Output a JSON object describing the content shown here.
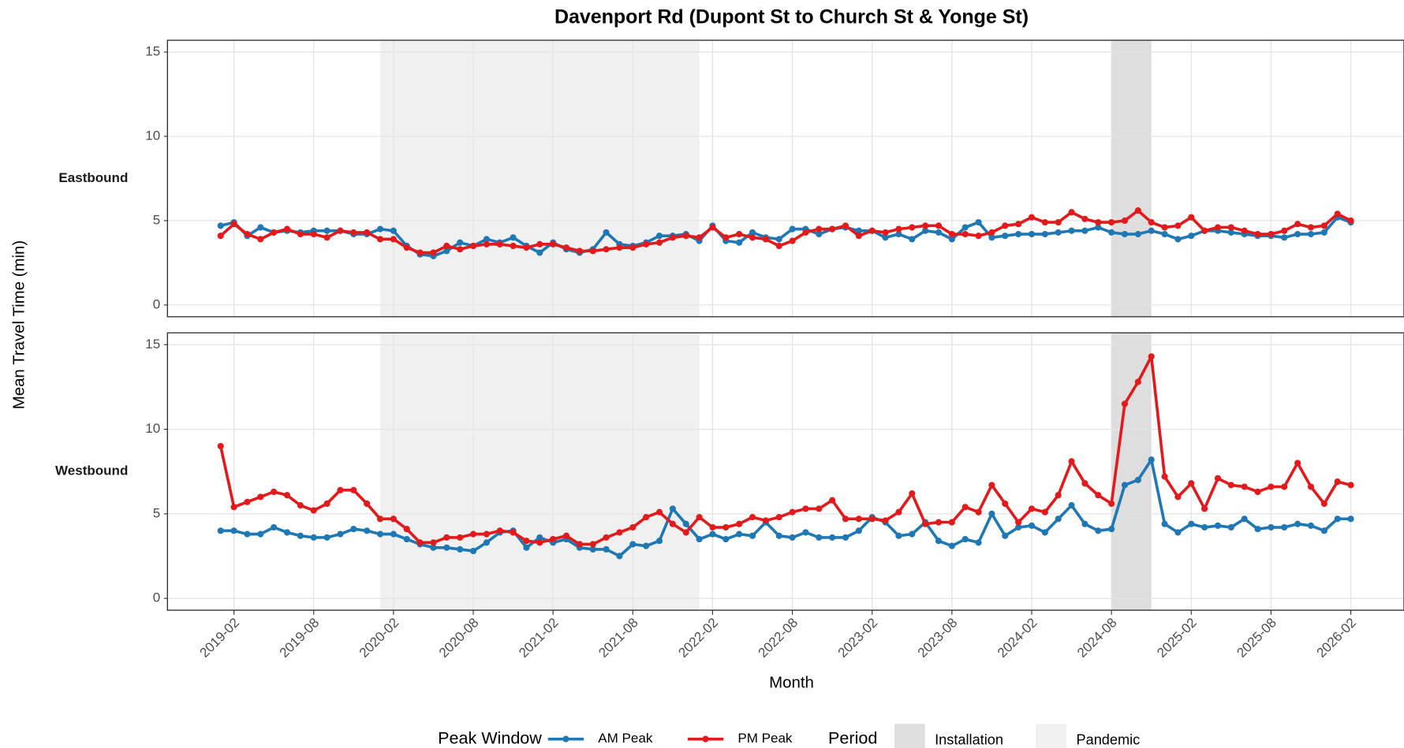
{
  "chart_data": {
    "type": "line",
    "title": "Davenport Rd (Dupont St to Church St & Yonge St)",
    "x_label": "Month",
    "y_label": "Mean Travel Time (min)",
    "x": [
      "2019-01",
      "2019-02",
      "2019-03",
      "2019-04",
      "2019-05",
      "2019-06",
      "2019-07",
      "2019-08",
      "2019-09",
      "2019-10",
      "2019-11",
      "2019-12",
      "2020-01",
      "2020-02",
      "2020-03",
      "2020-04",
      "2020-05",
      "2020-06",
      "2020-07",
      "2020-08",
      "2020-09",
      "2020-10",
      "2020-11",
      "2020-12",
      "2021-01",
      "2021-02",
      "2021-03",
      "2021-04",
      "2021-05",
      "2021-06",
      "2021-07",
      "2021-08",
      "2021-09",
      "2021-10",
      "2021-11",
      "2021-12",
      "2022-01",
      "2022-02",
      "2022-03",
      "2022-04",
      "2022-05",
      "2022-06",
      "2022-07",
      "2022-08",
      "2022-09",
      "2022-10",
      "2022-11",
      "2022-12",
      "2023-01",
      "2023-02",
      "2023-03",
      "2023-04",
      "2023-05",
      "2023-06",
      "2023-07",
      "2023-08",
      "2023-09",
      "2023-10",
      "2023-11",
      "2023-12",
      "2024-01",
      "2024-02",
      "2024-03",
      "2024-04",
      "2024-05",
      "2024-06",
      "2024-07",
      "2024-08",
      "2024-09",
      "2024-10",
      "2024-11",
      "2024-12",
      "2025-01",
      "2025-02",
      "2025-03",
      "2025-04",
      "2025-05",
      "2025-06",
      "2025-07",
      "2025-08",
      "2025-09",
      "2025-10",
      "2025-11",
      "2025-12",
      "2026-01",
      "2026-02"
    ],
    "xlim": [
      "2018-09",
      "2026-06"
    ],
    "xticks": [
      "2019-02",
      "2019-08",
      "2020-02",
      "2020-08",
      "2021-02",
      "2021-08",
      "2022-02",
      "2022-08",
      "2023-02",
      "2023-08",
      "2024-02",
      "2024-08",
      "2025-02",
      "2025-08",
      "2026-02"
    ],
    "ylim": [
      -0.7,
      15.7
    ],
    "yticks": [
      0,
      5,
      10,
      15
    ],
    "grid": true,
    "legend_title": "Peak Window",
    "period_legend_title": "Period",
    "periods": [
      {
        "name": "Installation",
        "start": "2024-08",
        "end": "2024-11",
        "color": "#dedede"
      },
      {
        "name": "Pandemic",
        "start": "2020-01",
        "end": "2022-01",
        "color": "#f0f0f0"
      }
    ],
    "panels": [
      {
        "label": "Eastbound",
        "series": [
          {
            "name": "AM Peak",
            "color": "#1f78b4",
            "values": [
              4.7,
              4.9,
              4.1,
              4.6,
              4.3,
              4.4,
              4.3,
              4.4,
              4.4,
              4.4,
              4.2,
              4.2,
              4.5,
              4.4,
              3.5,
              3.0,
              2.9,
              3.2,
              3.7,
              3.5,
              3.9,
              3.7,
              4.0,
              3.5,
              3.1,
              3.7,
              3.3,
              3.1,
              3.3,
              4.3,
              3.6,
              3.5,
              3.7,
              4.1,
              4.1,
              4.2,
              3.8,
              4.7,
              3.8,
              3.7,
              4.3,
              4.0,
              3.9,
              4.5,
              4.5,
              4.2,
              4.5,
              4.6,
              4.4,
              4.4,
              4.0,
              4.2,
              3.9,
              4.4,
              4.3,
              3.9,
              4.6,
              4.9,
              4.0,
              4.1,
              4.2,
              4.2,
              4.2,
              4.3,
              4.4,
              4.4,
              4.6,
              4.3,
              4.2,
              4.2,
              4.4,
              4.2,
              3.9,
              4.1,
              4.4,
              4.4,
              4.3,
              4.2,
              4.1,
              4.1,
              4.0,
              4.2,
              4.2,
              4.3,
              5.2,
              4.9
            ]
          },
          {
            "name": "PM Peak",
            "color": "#e31a1c",
            "values": [
              4.1,
              4.8,
              4.2,
              3.9,
              4.3,
              4.5,
              4.2,
              4.2,
              4.0,
              4.4,
              4.3,
              4.3,
              3.9,
              3.9,
              3.4,
              3.1,
              3.1,
              3.5,
              3.3,
              3.5,
              3.6,
              3.6,
              3.5,
              3.4,
              3.6,
              3.6,
              3.4,
              3.2,
              3.2,
              3.3,
              3.4,
              3.4,
              3.6,
              3.7,
              4.0,
              4.1,
              4.0,
              4.6,
              4.0,
              4.2,
              4.0,
              3.9,
              3.5,
              3.8,
              4.3,
              4.5,
              4.5,
              4.7,
              4.1,
              4.4,
              4.3,
              4.5,
              4.6,
              4.7,
              4.7,
              4.2,
              4.2,
              4.1,
              4.3,
              4.7,
              4.8,
              5.2,
              4.9,
              4.9,
              5.5,
              5.1,
              4.9,
              4.9,
              5.0,
              5.6,
              4.9,
              4.6,
              4.7,
              5.2,
              4.4,
              4.6,
              4.6,
              4.4,
              4.2,
              4.2,
              4.4,
              4.8,
              4.6,
              4.7,
              5.4,
              5.0
            ]
          }
        ]
      },
      {
        "label": "Westbound",
        "series": [
          {
            "name": "AM Peak",
            "color": "#1f78b4",
            "values": [
              4.0,
              4.0,
              3.8,
              3.8,
              4.2,
              3.9,
              3.7,
              3.6,
              3.6,
              3.8,
              4.1,
              4.0,
              3.8,
              3.8,
              3.5,
              3.2,
              3.0,
              3.0,
              2.9,
              2.8,
              3.3,
              3.9,
              4.0,
              3.0,
              3.6,
              3.3,
              3.5,
              3.0,
              2.9,
              2.9,
              2.5,
              3.2,
              3.1,
              3.4,
              5.3,
              4.4,
              3.5,
              3.8,
              3.5,
              3.8,
              3.7,
              4.5,
              3.7,
              3.6,
              3.9,
              3.6,
              3.6,
              3.6,
              4.0,
              4.8,
              4.5,
              3.7,
              3.8,
              4.5,
              3.4,
              3.1,
              3.5,
              3.3,
              5.0,
              3.7,
              4.2,
              4.3,
              3.9,
              4.7,
              5.5,
              4.4,
              4.0,
              4.1,
              6.7,
              7.0,
              8.2,
              4.4,
              3.9,
              4.4,
              4.2,
              4.3,
              4.2,
              4.7,
              4.1,
              4.2,
              4.2,
              4.4,
              4.3,
              4.0,
              4.7,
              4.7
            ]
          },
          {
            "name": "PM Peak",
            "color": "#e31a1c",
            "values": [
              9.0,
              5.4,
              5.7,
              6.0,
              6.3,
              6.1,
              5.5,
              5.2,
              5.6,
              6.4,
              6.4,
              5.6,
              4.7,
              4.7,
              4.1,
              3.3,
              3.3,
              3.6,
              3.6,
              3.8,
              3.8,
              4.0,
              3.9,
              3.4,
              3.3,
              3.5,
              3.7,
              3.2,
              3.2,
              3.6,
              3.9,
              4.2,
              4.8,
              5.1,
              4.4,
              3.9,
              4.8,
              4.2,
              4.2,
              4.4,
              4.8,
              4.6,
              4.8,
              5.1,
              5.3,
              5.3,
              5.8,
              4.7,
              4.7,
              4.7,
              4.6,
              5.1,
              6.2,
              4.4,
              4.5,
              4.5,
              5.4,
              5.1,
              6.7,
              5.6,
              4.5,
              5.3,
              5.1,
              6.1,
              8.1,
              6.8,
              6.1,
              5.6,
              11.5,
              12.8,
              14.3,
              7.2,
              6.0,
              6.8,
              5.3,
              7.1,
              6.7,
              6.6,
              6.3,
              6.6,
              6.6,
              8.0,
              6.6,
              5.6,
              6.9,
              6.7
            ]
          }
        ]
      }
    ]
  }
}
